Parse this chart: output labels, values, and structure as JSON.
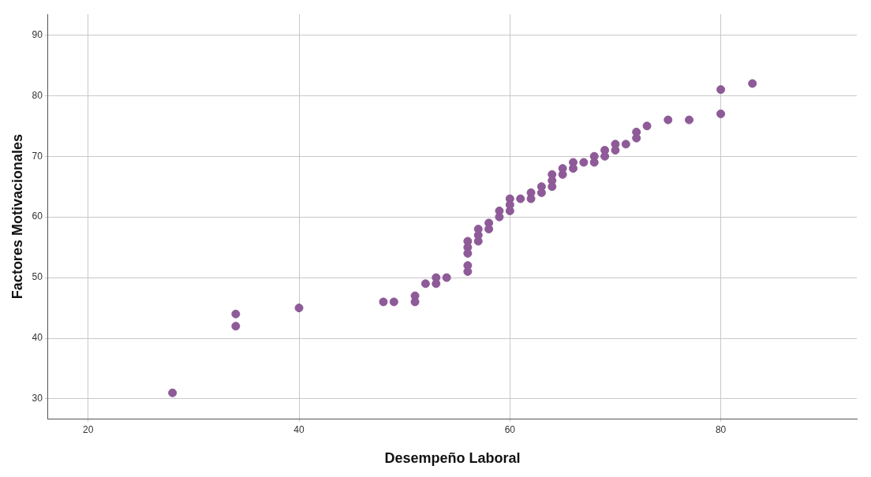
{
  "chart_data": {
    "type": "scatter",
    "xlabel": "Desempeño Laboral",
    "ylabel": "Factores Motivacionales",
    "x": [
      28,
      34,
      34,
      40,
      48,
      49,
      51,
      51,
      52,
      53,
      53,
      54,
      56,
      56,
      56,
      56,
      56,
      57,
      57,
      57,
      58,
      58,
      59,
      59,
      60,
      60,
      60,
      61,
      62,
      62,
      63,
      63,
      64,
      64,
      64,
      65,
      65,
      66,
      66,
      67,
      68,
      68,
      69,
      69,
      70,
      70,
      71,
      72,
      72,
      73,
      75,
      77,
      80,
      80,
      83
    ],
    "values": [
      31,
      44,
      42,
      45,
      46,
      46,
      47,
      46,
      49,
      50,
      49,
      50,
      56,
      55,
      54,
      52,
      51,
      58,
      57,
      56,
      59,
      58,
      61,
      60,
      63,
      62,
      61,
      63,
      64,
      63,
      65,
      64,
      67,
      66,
      65,
      68,
      67,
      69,
      68,
      69,
      70,
      69,
      71,
      70,
      72,
      71,
      72,
      74,
      73,
      75,
      76,
      76,
      81,
      77,
      82
    ],
    "color": "#8e5a97",
    "marker": "circle",
    "xlim": [
      16.2,
      92.9
    ],
    "ylim": [
      26.75,
      93.4
    ],
    "xticks": [
      20,
      40,
      60,
      80
    ],
    "yticks": [
      30,
      40,
      50,
      60,
      70,
      80,
      90
    ],
    "grid": true
  }
}
